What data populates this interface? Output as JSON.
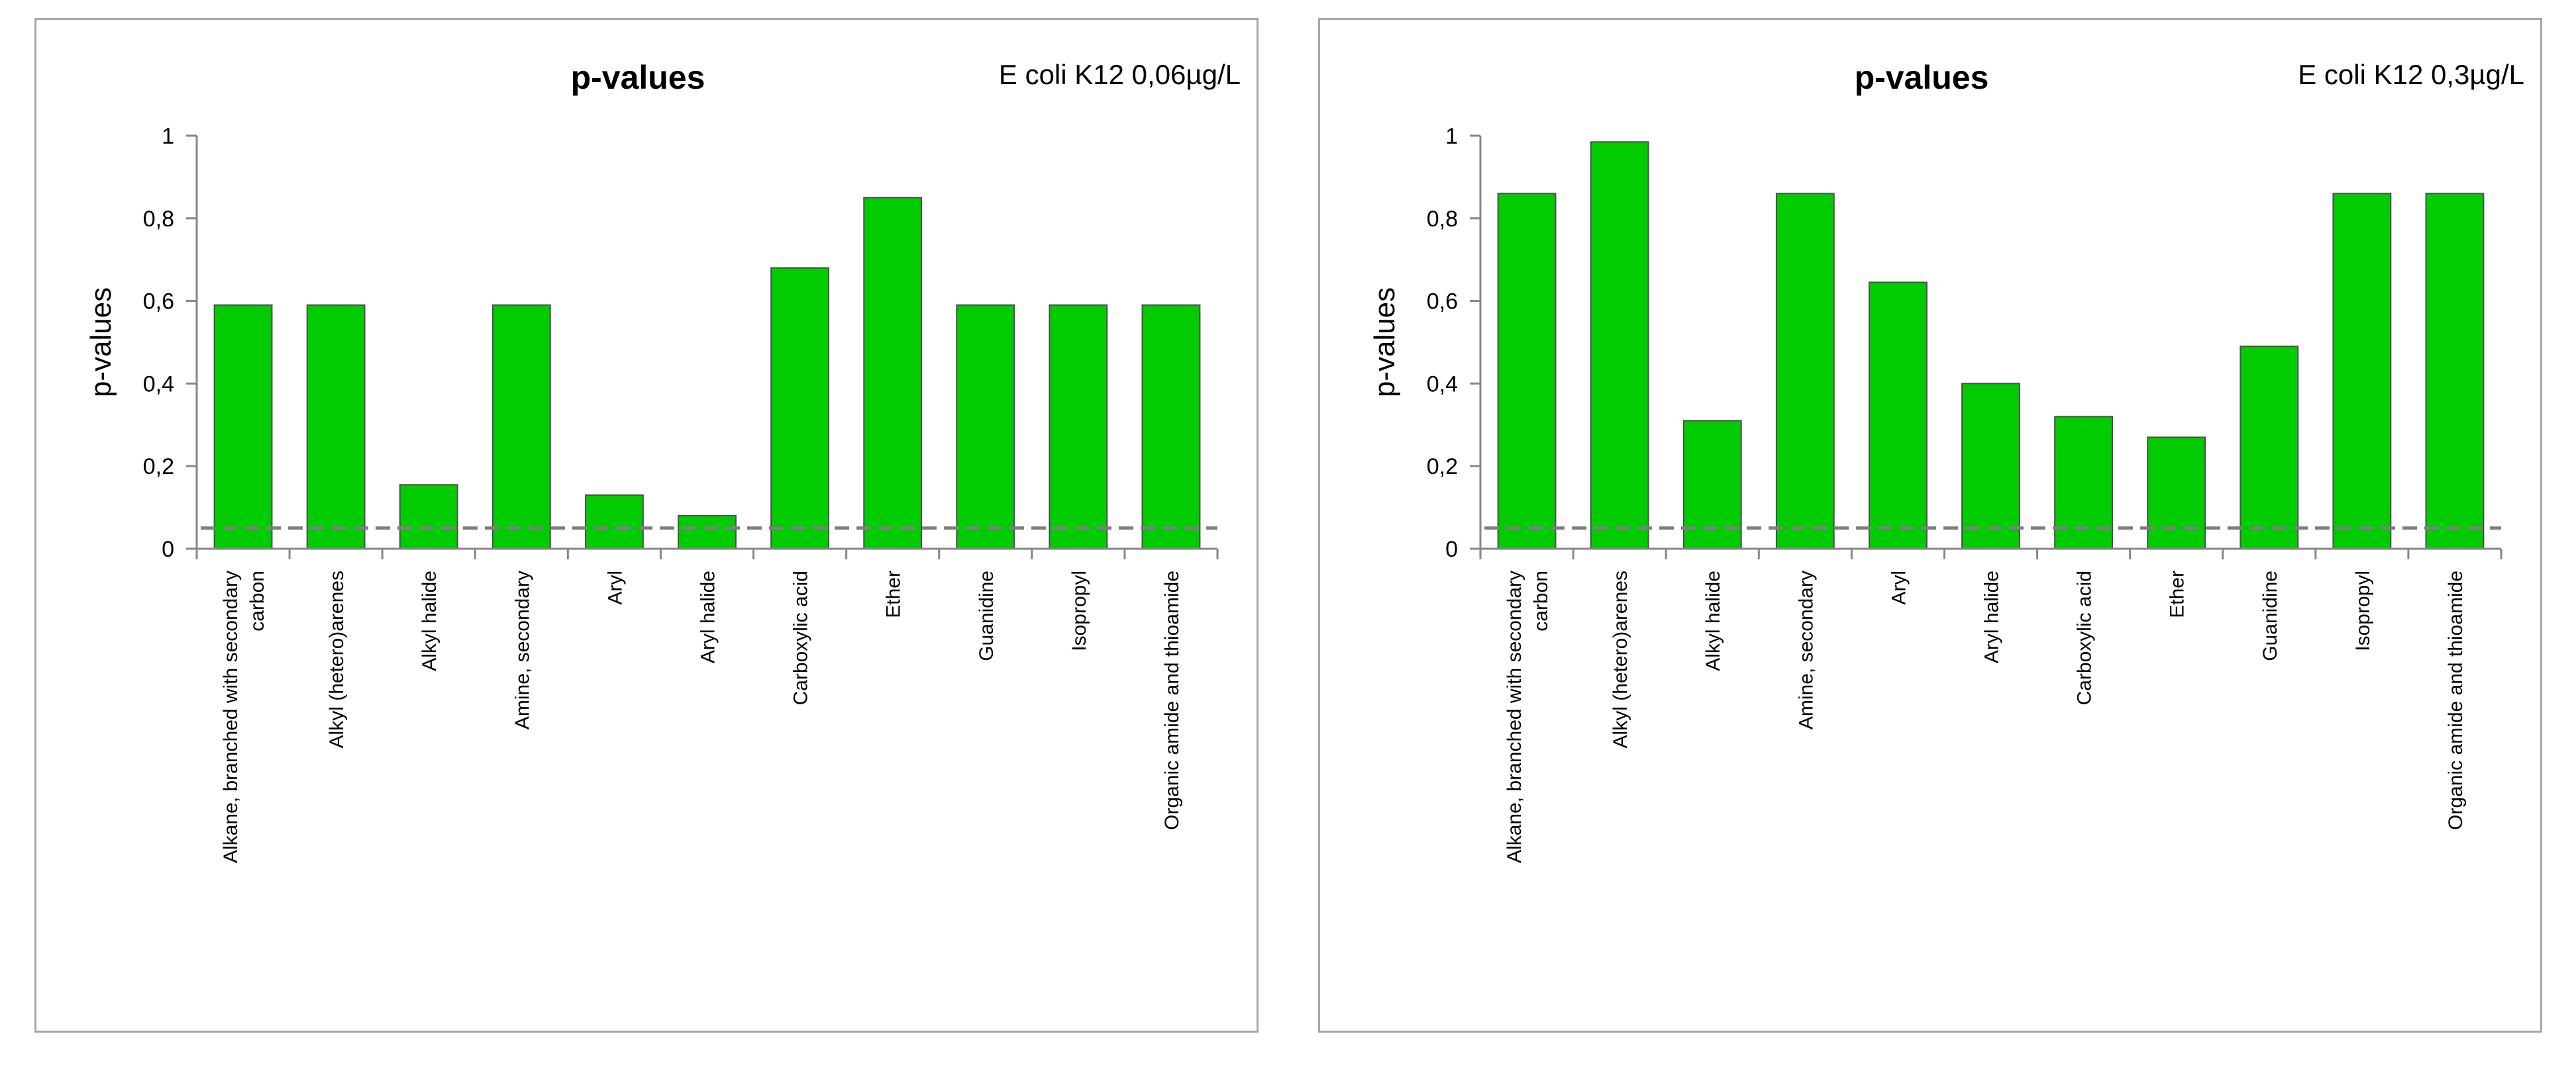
{
  "colors": {
    "bar": "#00cc00",
    "threshold": "#7f7f7f",
    "axis": "#868686"
  },
  "chart_data": [
    {
      "type": "bar",
      "title": "p-values",
      "subtitle": "E coli K12  0,06µg/L",
      "xlabel": "",
      "ylabel": "p-values",
      "ylim": [
        0,
        1
      ],
      "yticks": [
        0,
        0.2,
        0.4,
        0.6,
        0.8,
        1
      ],
      "ytick_labels": [
        "0",
        "0,2",
        "0,4",
        "0,6",
        "0,8",
        "1"
      ],
      "threshold": 0.05,
      "categories": [
        [
          "Alkane, branched with secondary",
          "carbon"
        ],
        [
          "Alkyl (hetero)arenes"
        ],
        [
          "Alkyl halide"
        ],
        [
          "Amine, secondary"
        ],
        [
          "Aryl"
        ],
        [
          "Aryl halide"
        ],
        [
          "Carboxylic acid"
        ],
        [
          "Ether"
        ],
        [
          "Guanidine"
        ],
        [
          "Isopropyl"
        ],
        [
          "Organic amide and thioamide"
        ]
      ],
      "values": [
        0.59,
        0.59,
        0.155,
        0.59,
        0.13,
        0.08,
        0.68,
        0.85,
        0.59,
        0.59,
        0.59
      ]
    },
    {
      "type": "bar",
      "title": "p-values",
      "subtitle": "E coli K12  0,3µg/L",
      "xlabel": "",
      "ylabel": "p-values",
      "ylim": [
        0,
        1
      ],
      "yticks": [
        0,
        0.2,
        0.4,
        0.6,
        0.8,
        1
      ],
      "ytick_labels": [
        "0",
        "0,2",
        "0,4",
        "0,6",
        "0,8",
        "1"
      ],
      "threshold": 0.05,
      "categories": [
        [
          "Alkane, branched with secondary",
          "carbon"
        ],
        [
          "Alkyl (hetero)arenes"
        ],
        [
          "Alkyl halide"
        ],
        [
          "Amine, secondary"
        ],
        [
          "Aryl"
        ],
        [
          "Aryl halide"
        ],
        [
          "Carboxylic acid"
        ],
        [
          "Ether"
        ],
        [
          "Guanidine"
        ],
        [
          "Isopropyl"
        ],
        [
          "Organic amide and thioamide"
        ]
      ],
      "values": [
        0.86,
        0.985,
        0.31,
        0.86,
        0.645,
        0.4,
        0.32,
        0.27,
        0.49,
        0.86,
        0.86
      ]
    }
  ]
}
